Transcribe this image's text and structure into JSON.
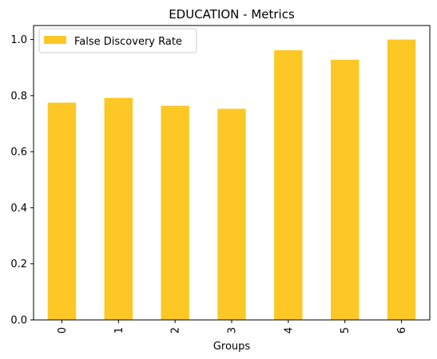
{
  "chart_data": {
    "type": "bar",
    "title": "EDUCATION - Metrics",
    "xlabel": "Groups",
    "ylabel": "",
    "categories": [
      "0",
      "1",
      "2",
      "3",
      "4",
      "5",
      "6"
    ],
    "series": [
      {
        "name": "False Discovery Rate",
        "color": "#fdc825",
        "values": [
          0.775,
          0.792,
          0.764,
          0.753,
          0.962,
          0.928,
          1.0
        ]
      }
    ],
    "ylim": [
      0,
      1.05
    ],
    "yticks": [
      "0.0",
      "0.2",
      "0.4",
      "0.6",
      "0.8",
      "1.0"
    ],
    "ytick_values": [
      0,
      0.2,
      0.4,
      0.6,
      0.8,
      1.0
    ],
    "grid": false,
    "legend_position": "top-left"
  }
}
